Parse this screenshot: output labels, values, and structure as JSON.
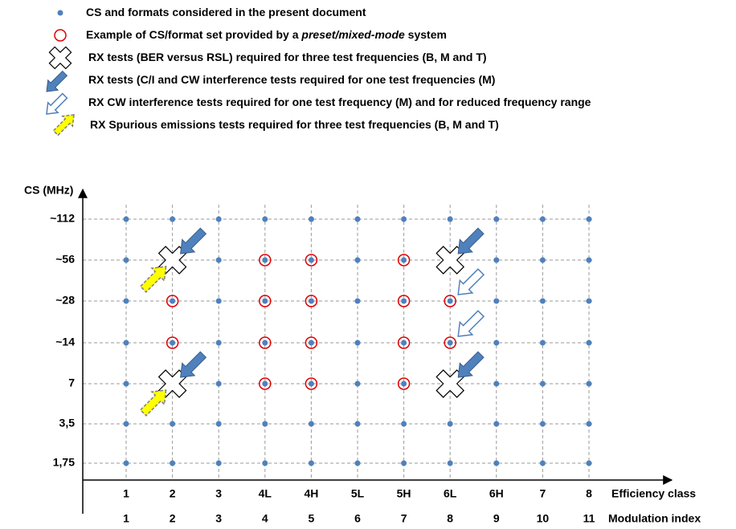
{
  "legend": [
    [
      "CS and formats considered in the present document"
    ],
    [
      "Example of CS/format set provided by a ",
      "preset/mixed-mode",
      " system"
    ],
    [
      "RX tests (BER versus RSL) required for three test frequencies (B, M and T)"
    ],
    [
      "RX tests (C/I and CW interference tests required for one test frequencies (M)"
    ],
    [
      "RX CW interference tests required for one test frequency (M) and for reduced frequency range"
    ],
    [
      "RX Spurious emissions tests required for three test frequencies (B, M and T)"
    ]
  ],
  "y_axis": {
    "label": "CS (MHz)",
    "categories": [
      "~112",
      "~56",
      "~28",
      "~14",
      "7",
      "3,5",
      "1,75"
    ]
  },
  "x_axis": {
    "efficiency_label": "Efficiency class",
    "efficiency_classes": [
      "1",
      "2",
      "3",
      "4L",
      "4H",
      "5L",
      "5H",
      "6L",
      "6H",
      "7",
      "8"
    ],
    "modulation_label": "Modulation index",
    "modulation_indices": [
      "1",
      "2",
      "3",
      "4",
      "5",
      "6",
      "7",
      "8",
      "9",
      "10",
      "11"
    ]
  }
}
